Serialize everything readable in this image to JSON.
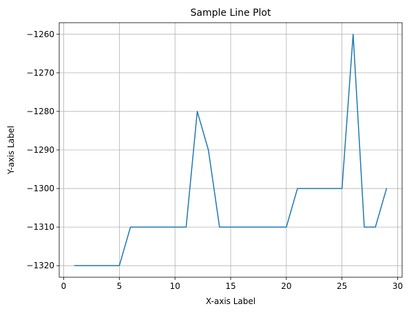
{
  "chart_data": {
    "type": "line",
    "title": "Sample Line Plot",
    "xlabel": "X-axis Label",
    "ylabel": "Y-axis Label",
    "xlim": [
      -0.4,
      30.4
    ],
    "ylim": [
      -1323,
      -1257
    ],
    "xticks": [
      0,
      5,
      10,
      15,
      20,
      25,
      30
    ],
    "yticks": [
      -1320,
      -1310,
      -1300,
      -1290,
      -1280,
      -1270,
      -1260
    ],
    "grid": true,
    "series": [
      {
        "color": "#1f77b4",
        "x": [
          1,
          2,
          3,
          4,
          5,
          6,
          7,
          8,
          9,
          10,
          11,
          12,
          13,
          14,
          15,
          16,
          17,
          18,
          19,
          20,
          21,
          22,
          23,
          24,
          25,
          26,
          27,
          28,
          29
        ],
        "y": [
          -1320,
          -1320,
          -1320,
          -1320,
          -1320,
          -1310,
          -1310,
          -1310,
          -1310,
          -1310,
          -1310,
          -1280,
          -1290,
          -1310,
          -1310,
          -1310,
          -1310,
          -1310,
          -1310,
          -1310,
          -1300,
          -1300,
          -1300,
          -1300,
          -1300,
          -1260,
          -1310,
          -1310,
          -1300
        ]
      }
    ]
  }
}
